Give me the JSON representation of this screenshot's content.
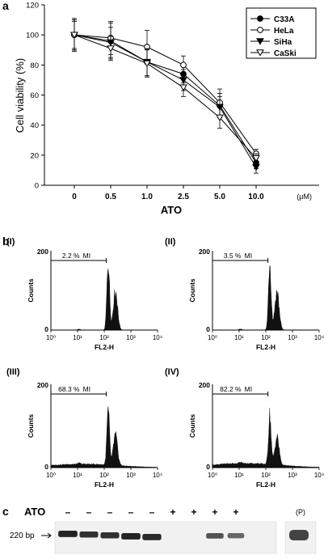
{
  "panel_labels": {
    "a": "a",
    "b": "b",
    "c": "c"
  },
  "chart_data": [
    {
      "type": "line",
      "panel": "a",
      "categories": [
        "0",
        "0.5",
        "1.0",
        "2.5",
        "5.0",
        "10.0"
      ],
      "x_unit": "(μM)",
      "xlabel": "ATO",
      "ylabel": "Cell viability (%)",
      "ylim": [
        0,
        120
      ],
      "yticks": [
        0,
        20,
        40,
        60,
        80,
        100,
        120
      ],
      "grid": false,
      "legend_position": "top-right",
      "series": [
        {
          "name": "C33A",
          "marker": "filled-circle",
          "values": [
            100,
            96,
            82,
            74,
            53,
            15
          ],
          "errors": [
            10,
            12,
            10,
            6,
            8,
            4
          ]
        },
        {
          "name": "HeLa",
          "marker": "open-circle",
          "values": [
            100,
            98,
            92,
            80,
            55,
            21
          ],
          "errors": [
            9,
            11,
            11,
            6,
            9,
            3
          ]
        },
        {
          "name": "SiHa",
          "marker": "filled-triangle-down",
          "values": [
            100,
            95,
            82,
            70,
            52,
            12
          ],
          "errors": [
            11,
            10,
            9,
            7,
            7,
            4
          ]
        },
        {
          "name": "CaSki",
          "marker": "open-triangle-down",
          "values": [
            100,
            91,
            81,
            65,
            45,
            18
          ],
          "errors": [
            10,
            8,
            9,
            6,
            7,
            3
          ]
        }
      ]
    },
    {
      "type": "histogram",
      "panel": "b",
      "xlabel": "FL2-H",
      "ylabel": "Counts",
      "xscale": "log",
      "xticks": [
        "10⁰",
        "10¹",
        "10²",
        "10³",
        "10⁴"
      ],
      "ylim": [
        0,
        200
      ],
      "yticks": [
        0,
        200
      ],
      "plots": [
        {
          "id": "I",
          "label": "(I)",
          "mi_text": "2.2 %",
          "mi_label": "MI",
          "mi_percent": 2.2
        },
        {
          "id": "II",
          "label": "(II)",
          "mi_text": "3.5 %",
          "mi_label": "MI",
          "mi_percent": 3.5
        },
        {
          "id": "III",
          "label": "(III)",
          "mi_text": "68.3 %",
          "mi_label": "MI",
          "mi_percent": 68.3
        },
        {
          "id": "IV",
          "label": "(IV)",
          "mi_text": "82.2 %",
          "mi_label": "MI",
          "mi_percent": 82.2
        }
      ]
    }
  ],
  "gel": {
    "row_label": "ATO",
    "size_label": "220 bp",
    "treatment": [
      "–",
      "–",
      "–",
      "–",
      "–",
      "+",
      "+",
      "+",
      "+"
    ],
    "band_intensity": [
      0.95,
      0.85,
      0.85,
      0.95,
      0.9,
      0,
      0,
      0.6,
      0.45,
      0.55
    ],
    "positive_label": "(P)"
  }
}
